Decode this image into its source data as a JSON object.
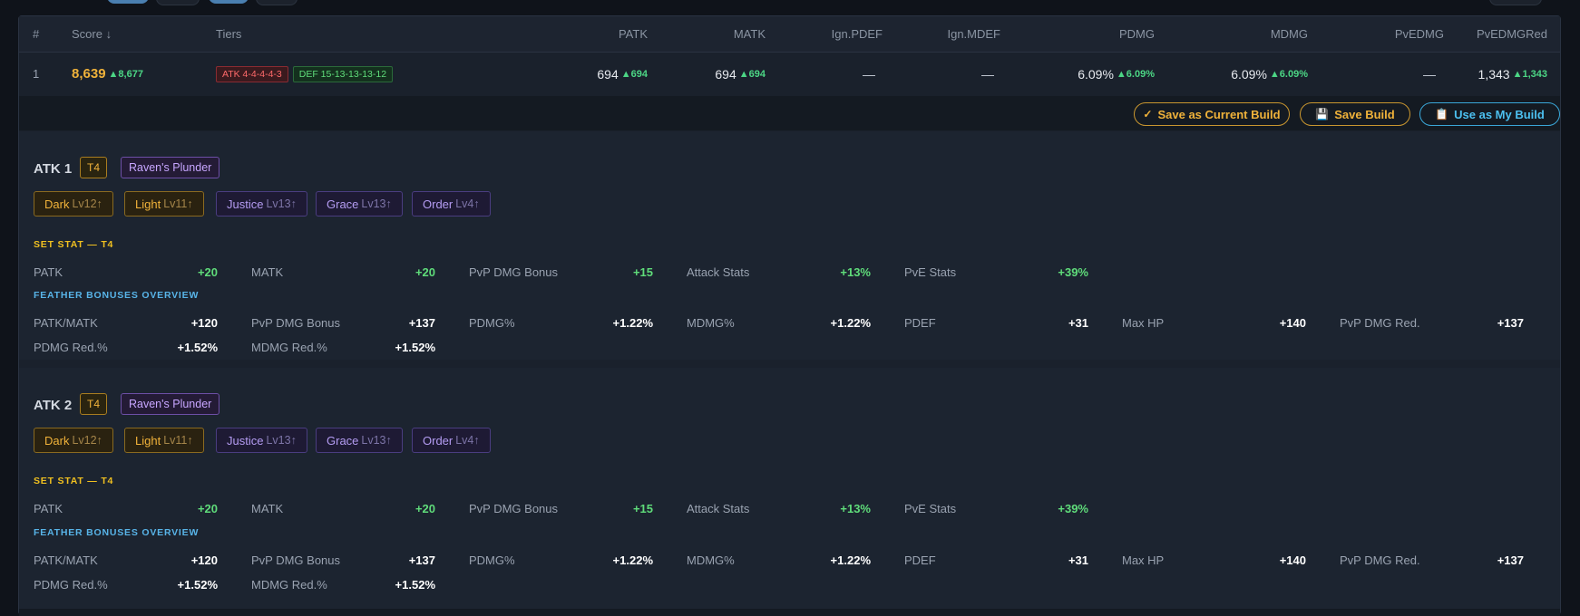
{
  "table": {
    "headers": [
      "#",
      "Score ↓",
      "Tiers",
      "PATK",
      "MATK",
      "Ign.PDEF",
      "Ign.MDEF",
      "PDMG",
      "MDMG",
      "PvEDMG",
      "PvEDMGRed"
    ],
    "row": {
      "rank": "1",
      "score": "8,639",
      "score_up": "▲8,677",
      "tier_atk": "ATK 4-4-4-4-3",
      "tier_def": "DEF 15-13-13-13-12",
      "patk": "694",
      "patk_up": "▲694",
      "matk": "694",
      "matk_up": "▲694",
      "ign_pdef": "—",
      "ign_mdef": "—",
      "pdmg": "6.09%",
      "pdmg_up": "▲6.09%",
      "mdmg": "6.09%",
      "mdmg_up": "▲6.09%",
      "pvedmg": "—",
      "pvedmgred": "1,343",
      "pvedmgred_up": "▲1,343"
    }
  },
  "actions": {
    "save_current": "Save as Current Build",
    "save_current_icon": "✓",
    "save_build": "Save Build",
    "save_build_icon": "💾",
    "use_build": "Use as My Build",
    "use_build_icon": "📋"
  },
  "sections": [
    {
      "title": "ATK 1",
      "tier": "T4",
      "set_name": "Raven's Plunder",
      "feathers": [
        {
          "name": "Dark",
          "lv": "Lv12↑",
          "color": "gold"
        },
        {
          "name": "Light",
          "lv": "Lv11↑",
          "color": "gold"
        },
        {
          "name": "Justice",
          "lv": "Lv13↑",
          "color": "purple"
        },
        {
          "name": "Grace",
          "lv": "Lv13↑",
          "color": "purple"
        },
        {
          "name": "Order",
          "lv": "Lv4↑",
          "color": "purple"
        }
      ],
      "set_stat_title": "SET STAT — T4",
      "set_stats": [
        {
          "name": "PATK",
          "value": "+20"
        },
        {
          "name": "MATK",
          "value": "+20"
        },
        {
          "name": "PvP DMG Bonus",
          "value": "+15"
        },
        {
          "name": "Attack Stats",
          "value": "+13%"
        },
        {
          "name": "PvE Stats",
          "value": "+39%"
        }
      ],
      "feather_title": "FEATHER BONUSES OVERVIEW",
      "feather_bonuses": [
        {
          "name": "PATK/MATK",
          "value": "+120"
        },
        {
          "name": "PvP DMG Bonus",
          "value": "+137"
        },
        {
          "name": "PDMG%",
          "value": "+1.22%"
        },
        {
          "name": "MDMG%",
          "value": "+1.22%"
        },
        {
          "name": "PDEF",
          "value": "+31"
        },
        {
          "name": "Max HP",
          "value": "+140"
        },
        {
          "name": "PvP DMG Red.",
          "value": "+137"
        },
        {
          "name": "PDMG Red.%",
          "value": "+1.52%"
        },
        {
          "name": "MDMG Red.%",
          "value": "+1.52%"
        }
      ]
    },
    {
      "title": "ATK 2",
      "tier": "T4",
      "set_name": "Raven's Plunder",
      "feathers": [
        {
          "name": "Dark",
          "lv": "Lv12↑",
          "color": "gold"
        },
        {
          "name": "Light",
          "lv": "Lv11↑",
          "color": "gold"
        },
        {
          "name": "Justice",
          "lv": "Lv13↑",
          "color": "purple"
        },
        {
          "name": "Grace",
          "lv": "Lv13↑",
          "color": "purple"
        },
        {
          "name": "Order",
          "lv": "Lv4↑",
          "color": "purple"
        }
      ],
      "set_stat_title": "SET STAT — T4",
      "set_stats": [
        {
          "name": "PATK",
          "value": "+20"
        },
        {
          "name": "MATK",
          "value": "+20"
        },
        {
          "name": "PvP DMG Bonus",
          "value": "+15"
        },
        {
          "name": "Attack Stats",
          "value": "+13%"
        },
        {
          "name": "PvE Stats",
          "value": "+39%"
        }
      ],
      "feather_title": "FEATHER BONUSES OVERVIEW",
      "feather_bonuses": [
        {
          "name": "PATK/MATK",
          "value": "+120"
        },
        {
          "name": "PvP DMG Bonus",
          "value": "+137"
        },
        {
          "name": "PDMG%",
          "value": "+1.22%"
        },
        {
          "name": "MDMG%",
          "value": "+1.22%"
        },
        {
          "name": "PDEF",
          "value": "+31"
        },
        {
          "name": "Max HP",
          "value": "+140"
        },
        {
          "name": "PvP DMG Red.",
          "value": "+137"
        },
        {
          "name": "PDMG Red.%",
          "value": "+1.52%"
        },
        {
          "name": "MDMG Red.%",
          "value": "+1.52%"
        }
      ]
    }
  ]
}
